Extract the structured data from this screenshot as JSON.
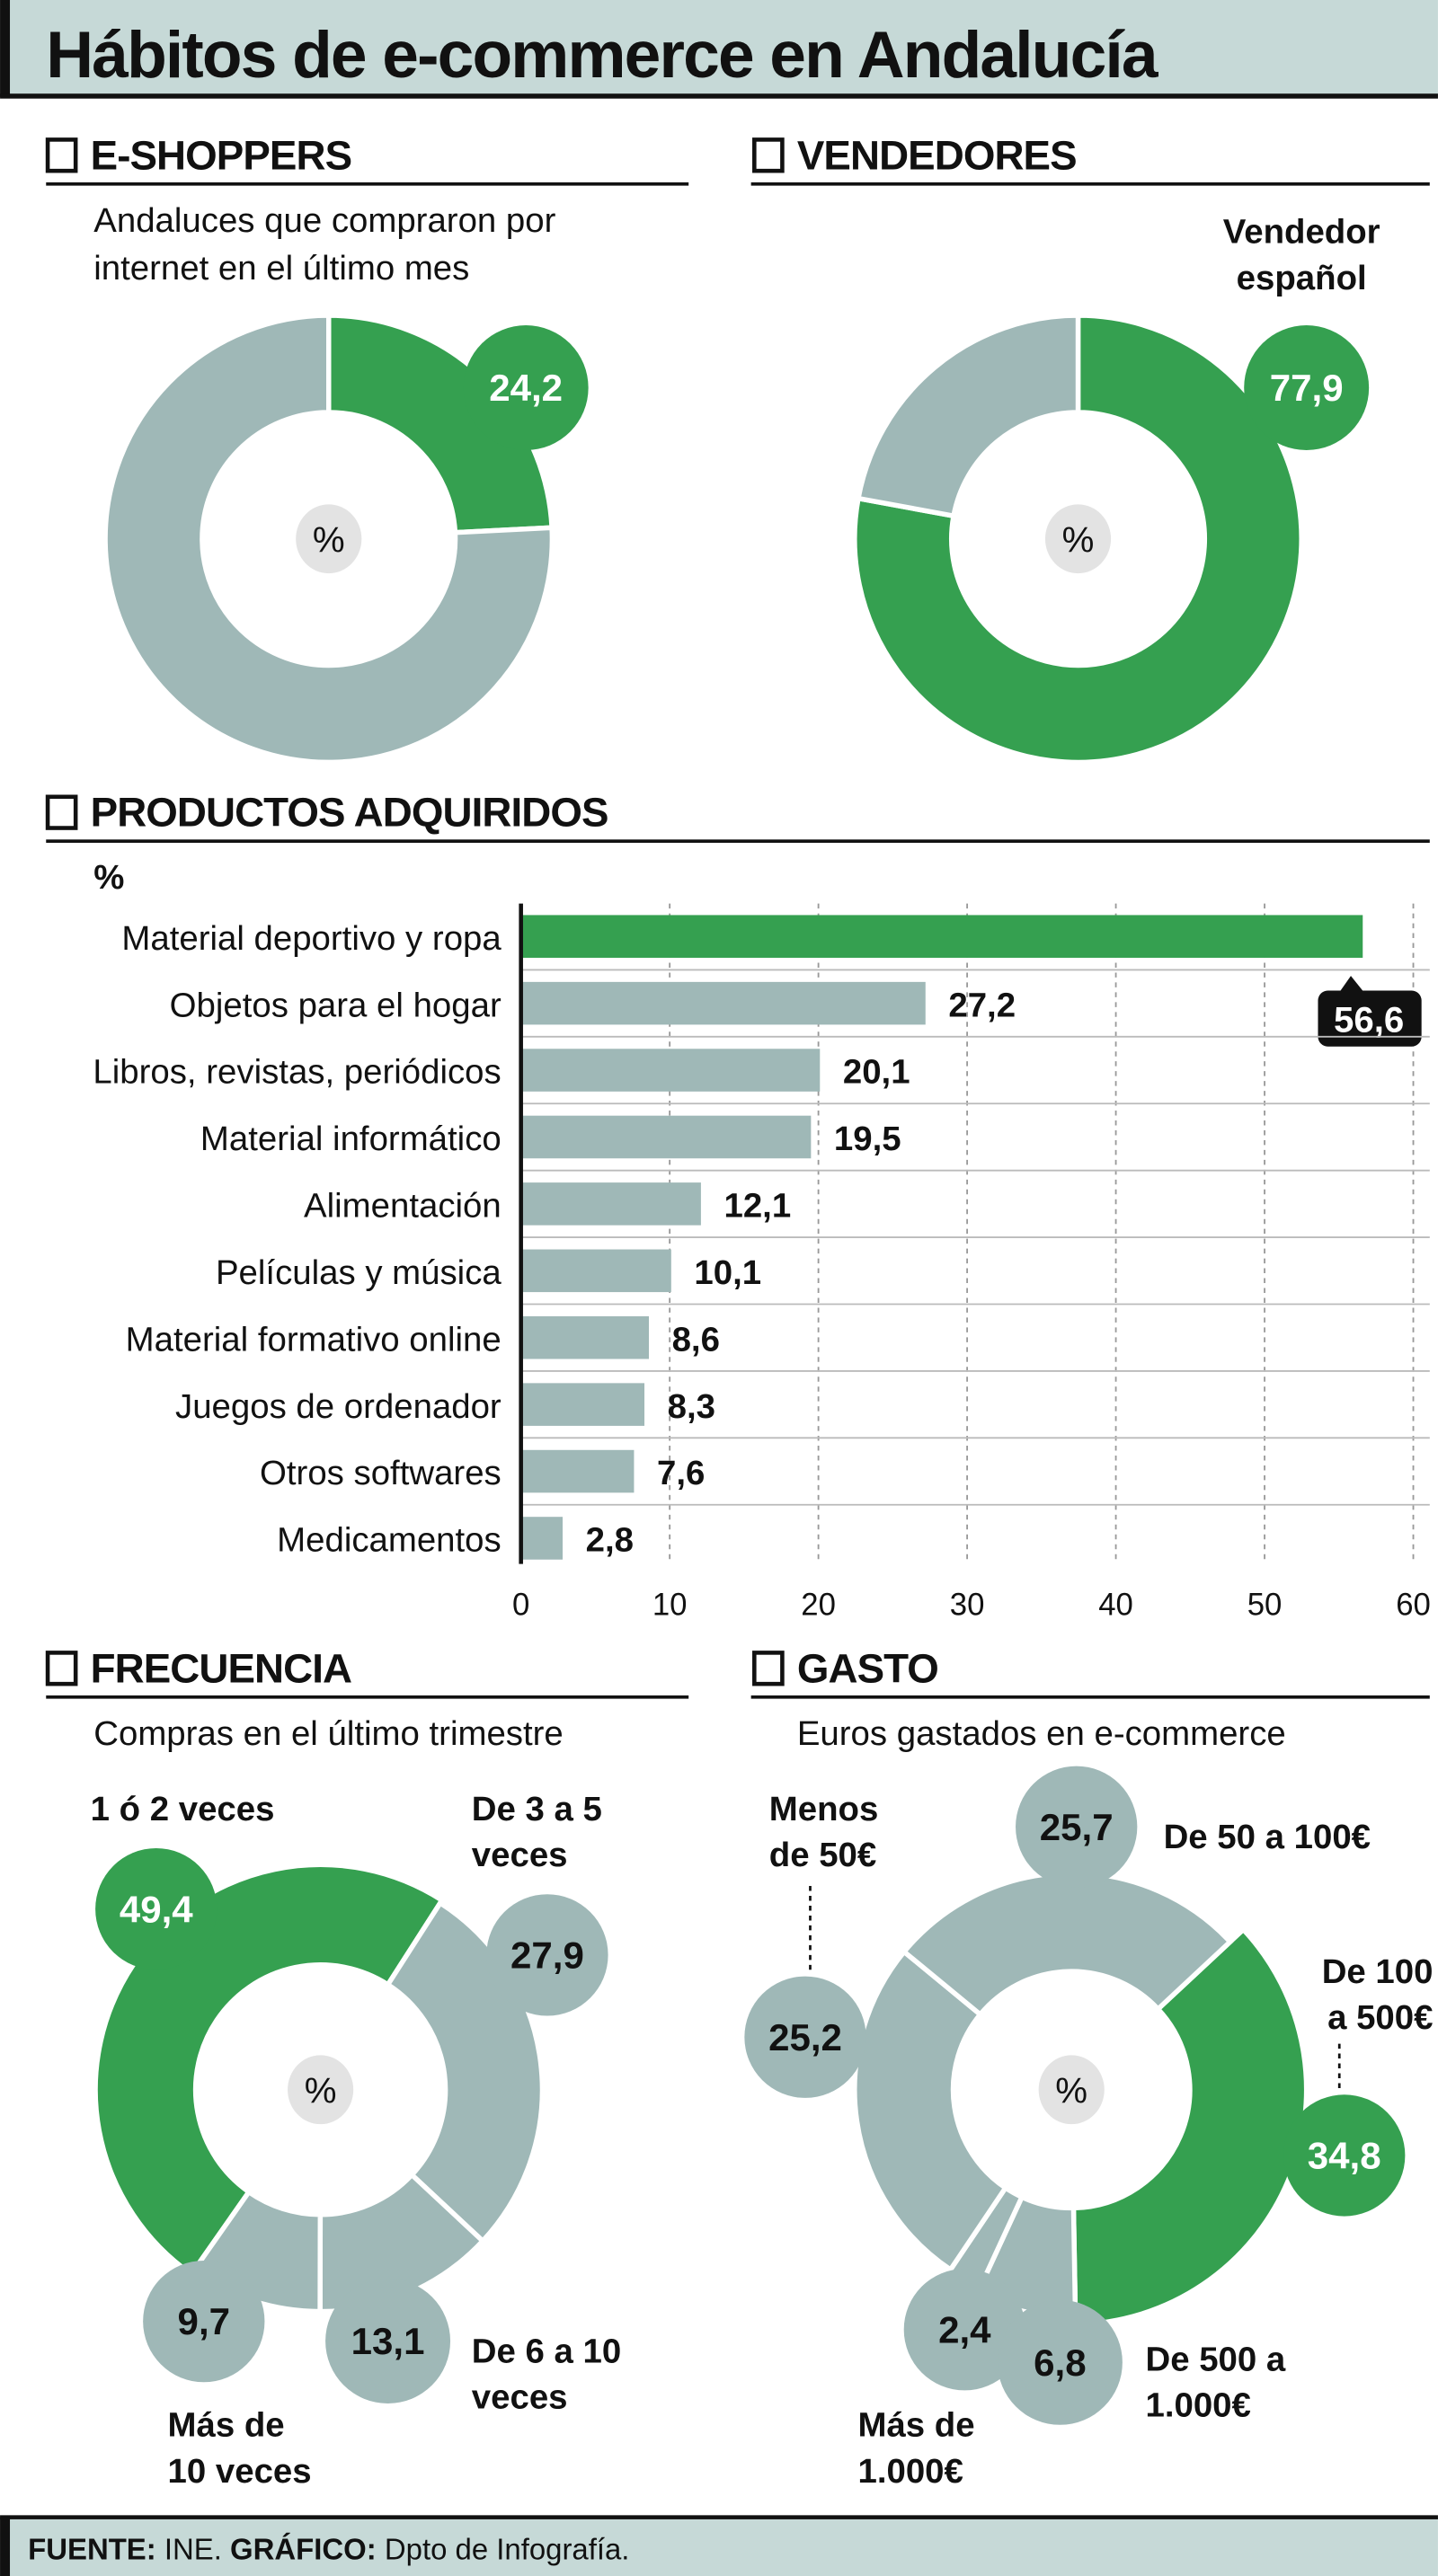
{
  "title": "Hábitos de e-commerce en Andalucía",
  "colors": {
    "accent": "#35a050",
    "neutral": "#9fb8b7",
    "header_bg": "#c6d9d7",
    "pct_bubble": "#e3e3e3"
  },
  "footer": {
    "source_label": "FUENTE:",
    "source": "INE.",
    "graphic_label": "GRÁFICO:",
    "graphic": "Dpto de Infografía."
  },
  "chart_data": [
    {
      "type": "pie",
      "title": "E-SHOPPERS",
      "subtitle_lines": [
        "Andaluces que compraron por",
        "internet en el último mes"
      ],
      "center_label": "%",
      "slices": [
        {
          "value": 24.2,
          "display": "24,2",
          "color": "#35a050"
        },
        {
          "value": 75.8,
          "color": "#9fb8b7"
        }
      ]
    },
    {
      "type": "pie",
      "title": "VENDEDORES",
      "highlight_label_lines": [
        "Vendedor",
        "español"
      ],
      "center_label": "%",
      "slices": [
        {
          "value": 77.9,
          "display": "77,9",
          "color": "#35a050"
        },
        {
          "value": 22.1,
          "color": "#9fb8b7"
        }
      ]
    },
    {
      "type": "bar",
      "orientation": "horizontal",
      "title": "PRODUCTOS ADQUIRIDOS",
      "unit": "%",
      "categories": [
        "Material deportivo y ropa",
        "Objetos para el hogar",
        "Libros, revistas, periódicos",
        "Material informático",
        "Alimentación",
        "Películas y música",
        "Material formativo online",
        "Juegos de ordenador",
        "Otros softwares",
        "Medicamentos"
      ],
      "values": [
        56.6,
        27.2,
        20.1,
        19.5,
        12.1,
        10.1,
        8.6,
        8.3,
        7.6,
        2.8
      ],
      "value_labels": [
        "56,6",
        "27,2",
        "20,1",
        "19,5",
        "12,1",
        "10,1",
        "8,6",
        "8,3",
        "7,6",
        "2,8"
      ],
      "highlight_index": 0,
      "xlim": [
        0,
        60
      ],
      "ticks": [
        0,
        10,
        20,
        30,
        40,
        50,
        60
      ],
      "grid": true
    },
    {
      "type": "pie",
      "title": "FRECUENCIA",
      "subtitle_lines": [
        "Compras en el último trimestre"
      ],
      "center_label": "%",
      "slices": [
        {
          "label_lines": [
            "1 ó 2 veces"
          ],
          "value": 49.4,
          "display": "49,4",
          "color": "#35a050"
        },
        {
          "label_lines": [
            "De 3 a 5",
            "veces"
          ],
          "value": 27.9,
          "display": "27,9",
          "color": "#9fb8b7"
        },
        {
          "label_lines": [
            "De 6 a 10",
            "veces"
          ],
          "value": 13.1,
          "display": "13,1",
          "color": "#9fb8b7"
        },
        {
          "label_lines": [
            "Más de",
            "10 veces"
          ],
          "value": 9.7,
          "display": "9,7",
          "color": "#9fb8b7"
        }
      ]
    },
    {
      "type": "pie",
      "title": "GASTO",
      "subtitle_lines": [
        "Euros gastados en e-commerce"
      ],
      "center_label": "%",
      "slices": [
        {
          "label_lines": [
            "De 100",
            "a 500€"
          ],
          "value": 34.8,
          "display": "34,8",
          "color": "#35a050"
        },
        {
          "label_lines": [
            "De 500 a",
            "1.000€"
          ],
          "value": 6.8,
          "display": "6,8",
          "color": "#9fb8b7"
        },
        {
          "label_lines": [
            "Más de",
            "1.000€"
          ],
          "value": 2.4,
          "display": "2,4",
          "color": "#9fb8b7"
        },
        {
          "label_lines": [
            "Menos",
            "de 50€"
          ],
          "value": 25.2,
          "display": "25,2",
          "color": "#9fb8b7"
        },
        {
          "label_lines": [
            "De 50 a 100€"
          ],
          "value": 25.7,
          "display": "25,7",
          "color": "#9fb8b7"
        }
      ]
    }
  ]
}
